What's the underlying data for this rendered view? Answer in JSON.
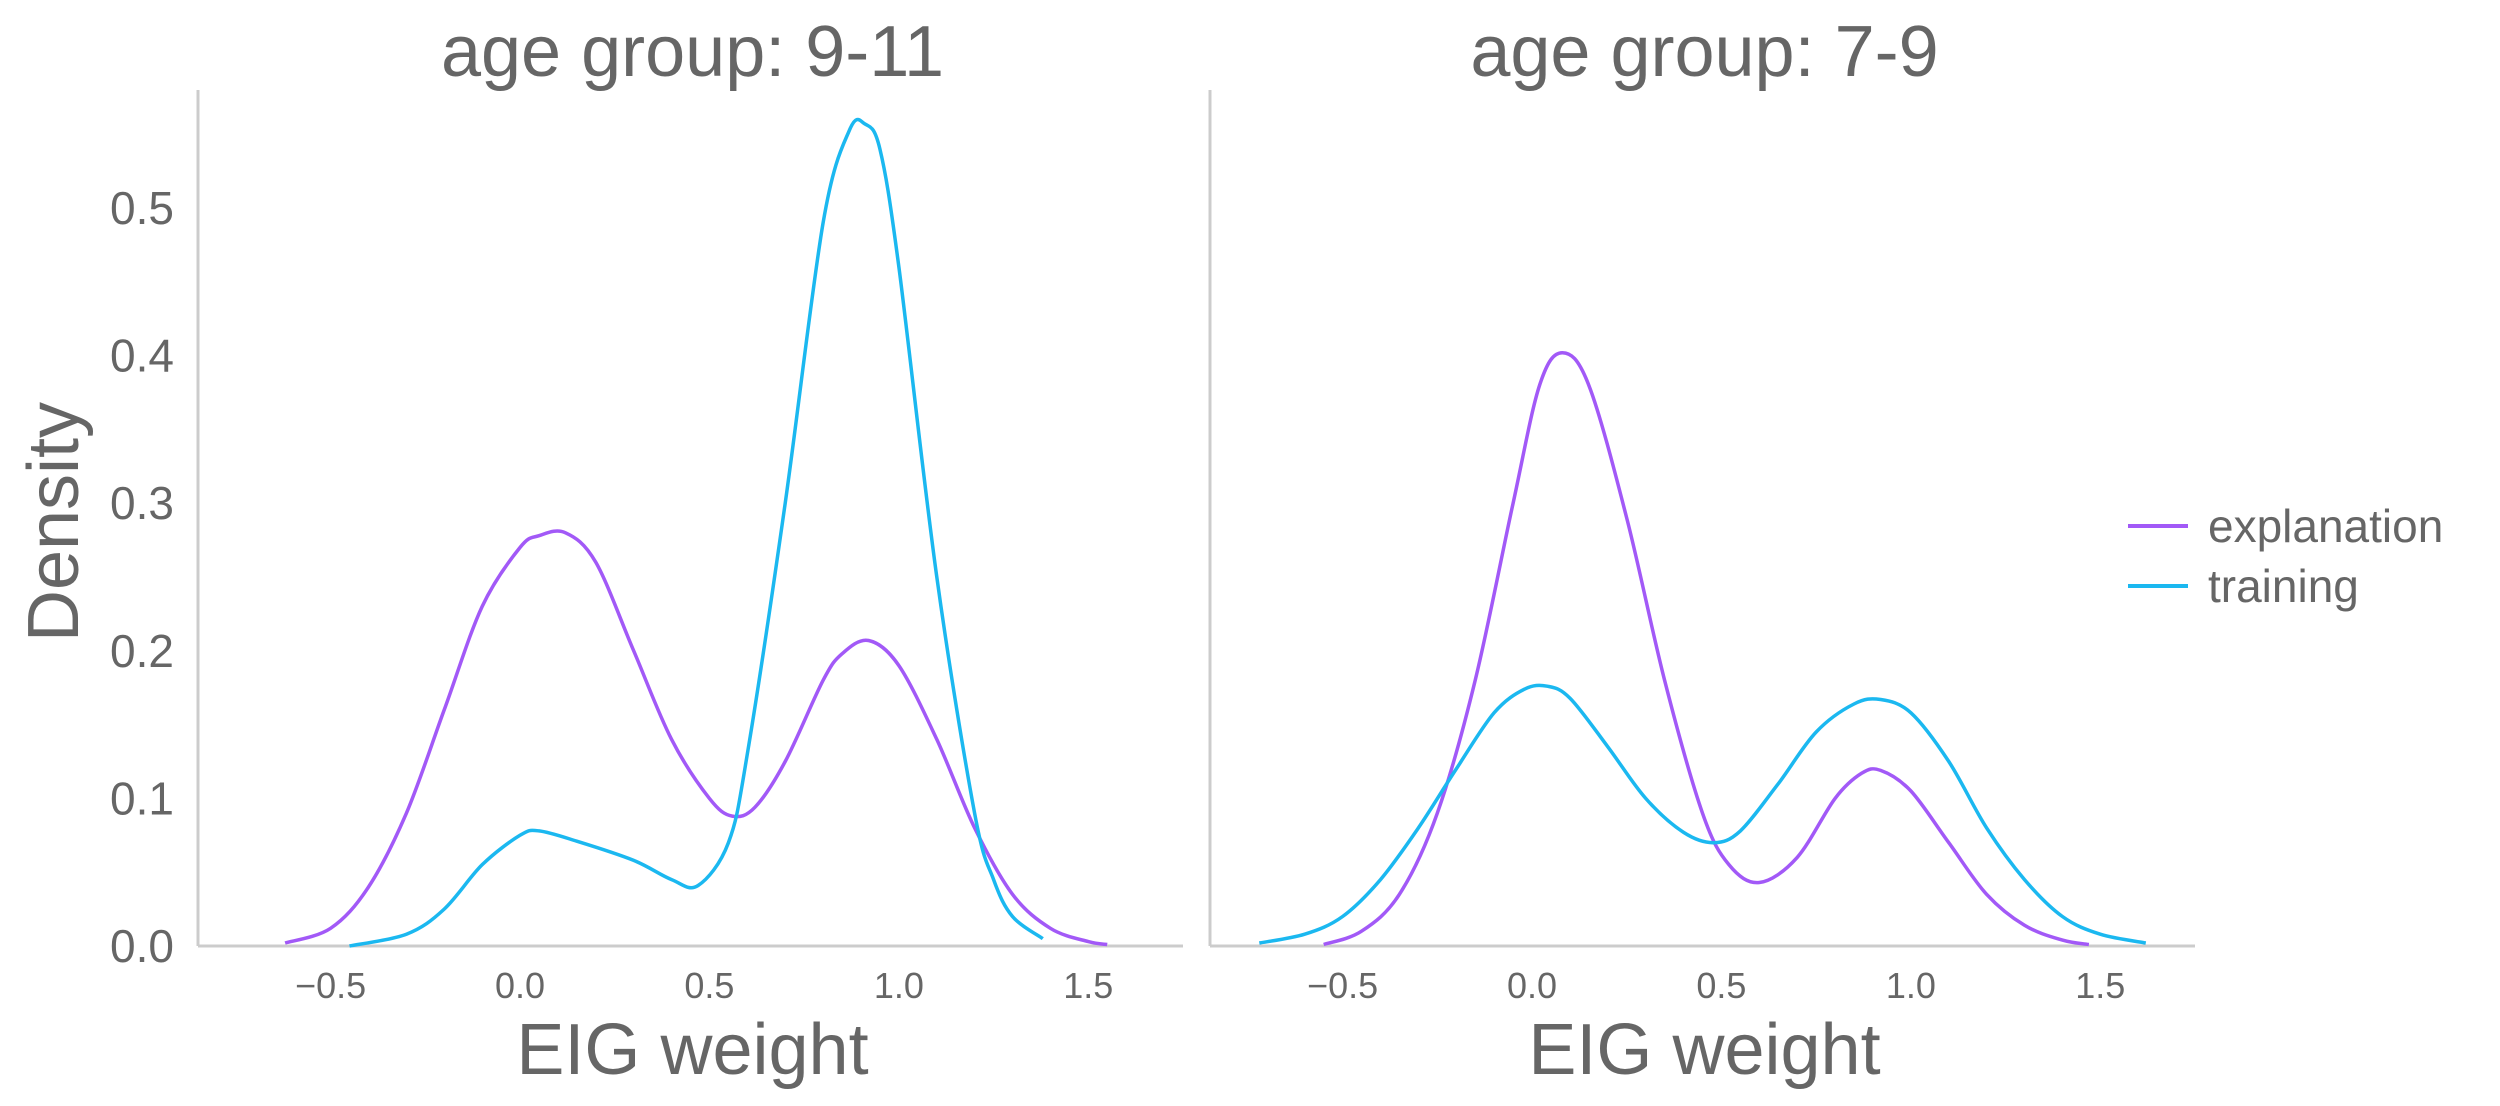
{
  "chart_data": {
    "type": "line",
    "ylabel": "Density",
    "ylim": [
      0,
      0.58
    ],
    "yticks": [
      "0.0",
      "0.1",
      "0.2",
      "0.3",
      "0.4",
      "0.5"
    ],
    "ytick_values": [
      0,
      0.1,
      0.2,
      0.3,
      0.4,
      0.5
    ],
    "xlim": [
      -0.85,
      1.75
    ],
    "xticks": [
      "−0.5",
      "0.0",
      "0.5",
      "1.0",
      "1.5"
    ],
    "xtick_values": [
      -0.5,
      0,
      0.5,
      1.0,
      1.5
    ],
    "grid": false,
    "legend": {
      "placement": "right",
      "entries": [
        {
          "name": "explanation",
          "color": "#a259f7"
        },
        {
          "name": "training",
          "color": "#1bb8f0"
        }
      ]
    },
    "panels": [
      {
        "title": "age group: 9-11",
        "xlabel": "EIG weight",
        "series": [
          {
            "name": "explanation",
            "color": "#a259f7",
            "x": [
              -0.62,
              -0.5,
              -0.4,
              -0.3,
              -0.2,
              -0.1,
              0.0,
              0.05,
              0.12,
              0.2,
              0.3,
              0.4,
              0.5,
              0.56,
              0.62,
              0.7,
              0.8,
              0.85,
              0.92,
              1.0,
              1.1,
              1.2,
              1.3,
              1.4,
              1.5,
              1.55
            ],
            "y": [
              0.002,
              0.012,
              0.04,
              0.09,
              0.16,
              0.23,
              0.27,
              0.278,
              0.28,
              0.26,
              0.2,
              0.14,
              0.1,
              0.088,
              0.094,
              0.125,
              0.18,
              0.198,
              0.207,
              0.19,
              0.14,
              0.08,
              0.035,
              0.012,
              0.003,
              0.001
            ]
          },
          {
            "name": "training",
            "color": "#1bb8f0",
            "x": [
              -0.45,
              -0.3,
              -0.2,
              -0.1,
              0.0,
              0.05,
              0.15,
              0.3,
              0.4,
              0.47,
              0.55,
              0.6,
              0.7,
              0.8,
              0.87,
              0.91,
              0.95,
              1.0,
              1.1,
              1.2,
              1.25,
              1.3,
              1.38
            ],
            "y": [
              0.0,
              0.008,
              0.025,
              0.055,
              0.075,
              0.078,
              0.071,
              0.058,
              0.045,
              0.041,
              0.07,
              0.13,
              0.3,
              0.49,
              0.553,
              0.557,
              0.54,
              0.46,
              0.25,
              0.09,
              0.045,
              0.02,
              0.005
            ]
          }
        ]
      },
      {
        "title": "age group: 7-9",
        "xlabel": "EIG weight",
        "series": [
          {
            "name": "explanation",
            "color": "#a259f7",
            "x": [
              -0.55,
              -0.45,
              -0.35,
              -0.25,
              -0.15,
              -0.05,
              0.02,
              0.08,
              0.15,
              0.25,
              0.35,
              0.45,
              0.52,
              0.6,
              0.7,
              0.8,
              0.87,
              0.92,
              1.0,
              1.1,
              1.2,
              1.3,
              1.4,
              1.47
            ],
            "y": [
              0.001,
              0.01,
              0.035,
              0.09,
              0.18,
              0.3,
              0.38,
              0.402,
              0.38,
              0.29,
              0.18,
              0.09,
              0.055,
              0.043,
              0.06,
              0.1,
              0.117,
              0.119,
              0.105,
              0.07,
              0.035,
              0.014,
              0.004,
              0.001
            ]
          },
          {
            "name": "training",
            "color": "#1bb8f0",
            "x": [
              -0.72,
              -0.6,
              -0.5,
              -0.4,
              -0.3,
              -0.2,
              -0.1,
              -0.02,
              0.04,
              0.1,
              0.2,
              0.3,
              0.4,
              0.48,
              0.55,
              0.65,
              0.75,
              0.85,
              0.92,
              1.0,
              1.1,
              1.2,
              1.3,
              1.4,
              1.5,
              1.62
            ],
            "y": [
              0.002,
              0.008,
              0.02,
              0.045,
              0.08,
              0.12,
              0.158,
              0.174,
              0.176,
              0.168,
              0.135,
              0.1,
              0.077,
              0.07,
              0.078,
              0.11,
              0.145,
              0.164,
              0.167,
              0.158,
              0.125,
              0.08,
              0.045,
              0.02,
              0.008,
              0.002
            ]
          }
        ]
      }
    ]
  }
}
